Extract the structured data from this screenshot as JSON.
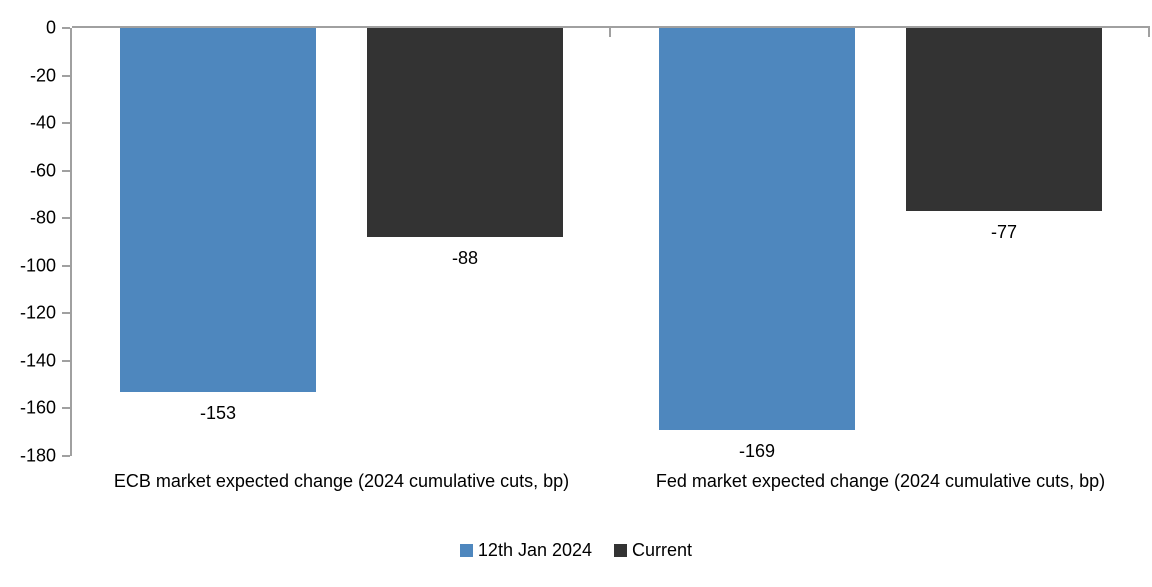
{
  "chart_data": {
    "type": "bar",
    "title": "",
    "categories": [
      "ECB market expected change (2024 cumulative cuts, bp)",
      "Fed market expected change (2024 cumulative cuts, bp)"
    ],
    "series": [
      {
        "name": "12th Jan 2024",
        "color": "#4E87BE",
        "values": [
          -153,
          -169
        ]
      },
      {
        "name": "Current",
        "color": "#333333",
        "values": [
          -88,
          -77
        ]
      }
    ],
    "ylim": [
      -180,
      0
    ],
    "ytick_step": 20,
    "ytick_labels": [
      "0",
      "-20",
      "-40",
      "-60",
      "-80",
      "-100",
      "-120",
      "-140",
      "-160",
      "-180"
    ],
    "data_labels_shown": true,
    "legend_position": "bottom",
    "grid": false,
    "axis_color": "#A0A0A0",
    "text_color": "#000000",
    "background_color": "#FFFFFF"
  }
}
